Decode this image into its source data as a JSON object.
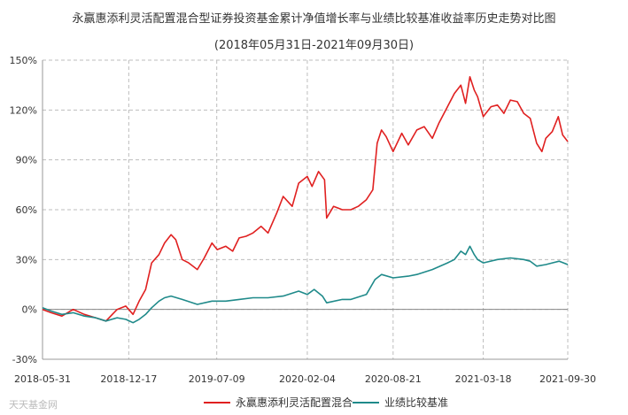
{
  "chart_data": {
    "type": "line",
    "title": "永赢惠添利灵活配置混合型证券投资基金累计净值增长率与业绩比较基准收益率历史走势对比图",
    "subtitle": "(2018年05月31日-2021年09月30日)",
    "xlabel": "",
    "ylabel": "",
    "x_ticks": [
      "2018-05-31",
      "2018-12-17",
      "2019-07-09",
      "2020-02-04",
      "2020-08-21",
      "2021-03-18",
      "2021-09-30"
    ],
    "y_ticks": [
      "150%",
      "120%",
      "90%",
      "60%",
      "30%",
      "0%",
      "-30%"
    ],
    "ylim": [
      -30,
      150
    ],
    "grid": true,
    "legend_position": "bottom",
    "series": [
      {
        "name": "永赢惠添利灵活配置混合",
        "color": "#e02020",
        "points": [
          [
            "2018-05-31",
            0
          ],
          [
            "2018-06-20",
            -2
          ],
          [
            "2018-07-15",
            -4
          ],
          [
            "2018-08-10",
            0
          ],
          [
            "2018-09-05",
            -3
          ],
          [
            "2018-10-01",
            -5
          ],
          [
            "2018-10-25",
            -7
          ],
          [
            "2018-11-20",
            0
          ],
          [
            "2018-12-10",
            2
          ],
          [
            "2018-12-27",
            -3
          ],
          [
            "2019-01-10",
            5
          ],
          [
            "2019-01-25",
            12
          ],
          [
            "2019-02-08",
            28
          ],
          [
            "2019-02-25",
            33
          ],
          [
            "2019-03-10",
            40
          ],
          [
            "2019-03-25",
            45
          ],
          [
            "2019-04-05",
            42
          ],
          [
            "2019-04-20",
            30
          ],
          [
            "2019-05-05",
            28
          ],
          [
            "2019-05-25",
            24
          ],
          [
            "2019-06-10",
            31
          ],
          [
            "2019-06-28",
            40
          ],
          [
            "2019-07-10",
            36
          ],
          [
            "2019-07-30",
            38
          ],
          [
            "2019-08-15",
            35
          ],
          [
            "2019-08-30",
            43
          ],
          [
            "2019-09-15",
            44
          ],
          [
            "2019-10-01",
            46
          ],
          [
            "2019-10-20",
            50
          ],
          [
            "2019-11-05",
            46
          ],
          [
            "2019-11-25",
            58
          ],
          [
            "2019-12-10",
            68
          ],
          [
            "2019-12-31",
            62
          ],
          [
            "2020-01-15",
            76
          ],
          [
            "2020-02-04",
            80
          ],
          [
            "2020-02-15",
            74
          ],
          [
            "2020-03-01",
            83
          ],
          [
            "2020-03-15",
            78
          ],
          [
            "2020-03-20",
            55
          ],
          [
            "2020-04-05",
            62
          ],
          [
            "2020-04-25",
            60
          ],
          [
            "2020-05-15",
            60
          ],
          [
            "2020-06-01",
            62
          ],
          [
            "2020-06-20",
            66
          ],
          [
            "2020-07-05",
            72
          ],
          [
            "2020-07-15",
            100
          ],
          [
            "2020-07-25",
            108
          ],
          [
            "2020-08-05",
            104
          ],
          [
            "2020-08-21",
            95
          ],
          [
            "2020-09-10",
            106
          ],
          [
            "2020-09-25",
            99
          ],
          [
            "2020-10-15",
            108
          ],
          [
            "2020-11-01",
            110
          ],
          [
            "2020-11-20",
            103
          ],
          [
            "2020-12-05",
            112
          ],
          [
            "2020-12-25",
            122
          ],
          [
            "2021-01-10",
            130
          ],
          [
            "2021-01-25",
            135
          ],
          [
            "2021-02-05",
            124
          ],
          [
            "2021-02-15",
            140
          ],
          [
            "2021-02-25",
            132
          ],
          [
            "2021-03-05",
            128
          ],
          [
            "2021-03-18",
            116
          ],
          [
            "2021-04-05",
            122
          ],
          [
            "2021-04-20",
            123
          ],
          [
            "2021-05-05",
            118
          ],
          [
            "2021-05-20",
            126
          ],
          [
            "2021-06-05",
            125
          ],
          [
            "2021-06-20",
            118
          ],
          [
            "2021-07-05",
            115
          ],
          [
            "2021-07-20",
            100
          ],
          [
            "2021-08-01",
            95
          ],
          [
            "2021-08-10",
            103
          ],
          [
            "2021-08-25",
            107
          ],
          [
            "2021-09-08",
            116
          ],
          [
            "2021-09-18",
            105
          ],
          [
            "2021-09-30",
            101
          ]
        ]
      },
      {
        "name": "业绩比较基准",
        "color": "#1f8a8a",
        "points": [
          [
            "2018-05-31",
            1
          ],
          [
            "2018-06-20",
            -1
          ],
          [
            "2018-07-15",
            -3
          ],
          [
            "2018-08-10",
            -2
          ],
          [
            "2018-09-05",
            -4
          ],
          [
            "2018-10-01",
            -5
          ],
          [
            "2018-10-25",
            -7
          ],
          [
            "2018-11-20",
            -5
          ],
          [
            "2018-12-10",
            -6
          ],
          [
            "2018-12-27",
            -8
          ],
          [
            "2019-01-10",
            -6
          ],
          [
            "2019-01-25",
            -3
          ],
          [
            "2019-02-08",
            1
          ],
          [
            "2019-02-25",
            5
          ],
          [
            "2019-03-10",
            7
          ],
          [
            "2019-03-25",
            8
          ],
          [
            "2019-04-20",
            6
          ],
          [
            "2019-05-25",
            3
          ],
          [
            "2019-06-28",
            5
          ],
          [
            "2019-07-30",
            5
          ],
          [
            "2019-08-30",
            6
          ],
          [
            "2019-10-01",
            7
          ],
          [
            "2019-11-05",
            7
          ],
          [
            "2019-12-10",
            8
          ],
          [
            "2020-01-15",
            11
          ],
          [
            "2020-02-04",
            9
          ],
          [
            "2020-02-20",
            12
          ],
          [
            "2020-03-10",
            8
          ],
          [
            "2020-03-20",
            4
          ],
          [
            "2020-04-25",
            6
          ],
          [
            "2020-05-15",
            6
          ],
          [
            "2020-06-20",
            9
          ],
          [
            "2020-07-10",
            18
          ],
          [
            "2020-07-25",
            21
          ],
          [
            "2020-08-21",
            19
          ],
          [
            "2020-09-25",
            20
          ],
          [
            "2020-10-15",
            21
          ],
          [
            "2020-11-20",
            24
          ],
          [
            "2020-12-25",
            28
          ],
          [
            "2021-01-10",
            30
          ],
          [
            "2021-01-25",
            35
          ],
          [
            "2021-02-05",
            33
          ],
          [
            "2021-02-15",
            38
          ],
          [
            "2021-02-25",
            33
          ],
          [
            "2021-03-05",
            30
          ],
          [
            "2021-03-18",
            28
          ],
          [
            "2021-04-20",
            30
          ],
          [
            "2021-05-20",
            31
          ],
          [
            "2021-06-20",
            30
          ],
          [
            "2021-07-05",
            29
          ],
          [
            "2021-07-20",
            26
          ],
          [
            "2021-08-10",
            27
          ],
          [
            "2021-08-25",
            28
          ],
          [
            "2021-09-10",
            29
          ],
          [
            "2021-09-30",
            27
          ]
        ]
      }
    ]
  },
  "watermark": "天天基金网"
}
